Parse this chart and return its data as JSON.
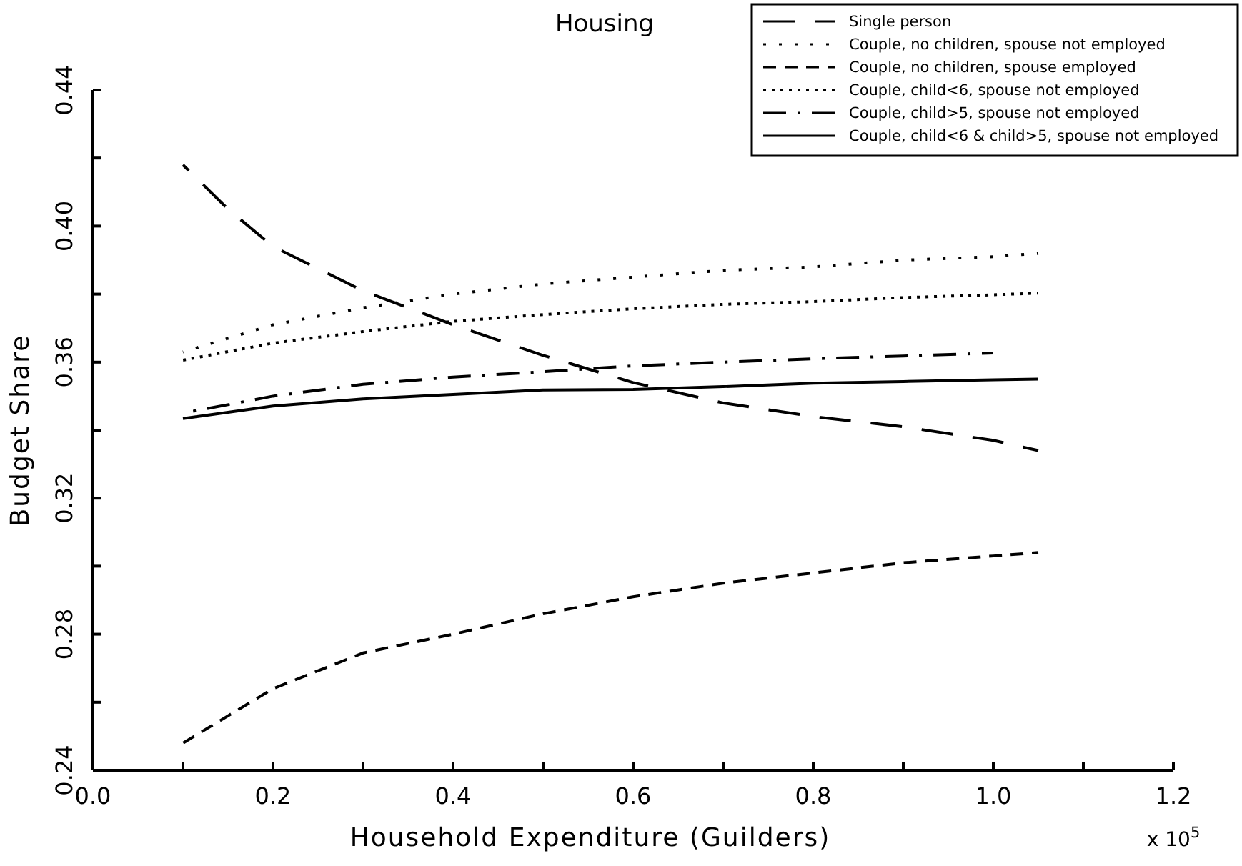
{
  "chart_data": {
    "type": "line",
    "title": "Housing",
    "xlabel": "Household Expenditure (Guilders)",
    "ylabel": "Budget Share",
    "annotations": [
      "x 10$^{5}$"
    ],
    "xlim": [
      0,
      1.2
    ],
    "ylim": [
      0.24,
      0.44
    ],
    "xticks": [
      {
        "value": 0,
        "label": "0.0"
      },
      {
        "value": 0.1,
        "label": null
      },
      {
        "value": 0.2,
        "label": "0.2"
      },
      {
        "value": 0.3,
        "label": null
      },
      {
        "value": 0.4,
        "label": "0.4"
      },
      {
        "value": 0.5,
        "label": null
      },
      {
        "value": 0.6,
        "label": "0.6"
      },
      {
        "value": 0.7,
        "label": null
      },
      {
        "value": 0.8,
        "label": "0.8"
      },
      {
        "value": 0.9,
        "label": null
      },
      {
        "value": 1.0,
        "label": "1.0"
      },
      {
        "value": 1.1,
        "label": null
      },
      {
        "value": 1.2,
        "label": "1.2"
      }
    ],
    "yticks": [
      0.24,
      {
        "value": 0.26,
        "label": null
      },
      0.28,
      {
        "value": 0.3,
        "label": null
      },
      0.32,
      {
        "value": 0.34,
        "label": null
      },
      0.36,
      {
        "value": 0.38,
        "label": null
      },
      {
        "value": 0.4,
        "label": "0.40"
      },
      {
        "value": 0.42,
        "label": null
      },
      0.44
    ],
    "legend": "top right",
    "grid": false,
    "marker": "none",
    "series": [
      {
        "name": "Single person",
        "color": "#000000",
        "line_style": "longdash",
        "x": [
          0.1,
          0.15,
          0.2,
          0.3,
          0.4,
          0.5,
          0.6,
          0.7,
          0.8,
          0.9,
          1.0,
          1.05
        ],
        "values": [
          0.418,
          0.405,
          0.394,
          0.381,
          0.371,
          0.362,
          0.354,
          0.348,
          0.344,
          0.341,
          0.337,
          0.334
        ]
      },
      {
        "name": "Couple, no children, spouse not employed",
        "color": "#000000",
        "line_style": "dotted",
        "x": [
          0.1,
          0.2,
          0.3,
          0.4,
          0.5,
          0.6,
          0.7,
          0.8,
          0.9,
          1.0,
          1.05
        ],
        "values": [
          0.363,
          0.371,
          0.376,
          0.38,
          0.383,
          0.385,
          0.387,
          0.388,
          0.39,
          0.391,
          0.392
        ]
      },
      {
        "name": "Couple, no children, spouse employed",
        "color": "#000000",
        "line_style": "dashed",
        "x": [
          0.1,
          0.15,
          0.2,
          0.3,
          0.4,
          0.5,
          0.6,
          0.7,
          0.8,
          0.9,
          1.0,
          1.05
        ],
        "values": [
          0.248,
          0.256,
          0.264,
          0.2745,
          0.28,
          0.286,
          0.291,
          0.295,
          0.298,
          0.301,
          0.303,
          0.304
        ]
      },
      {
        "name": "Couple, child<6, spouse not employed",
        "color": "#000000",
        "line_style": "densedotted",
        "x": [
          0.1,
          0.2,
          0.3,
          0.4,
          0.5,
          0.6,
          0.7,
          0.8,
          0.9,
          1.0,
          1.05
        ],
        "values": [
          0.3606,
          0.3656,
          0.369,
          0.372,
          0.374,
          0.3757,
          0.377,
          0.3778,
          0.379,
          0.3798,
          0.3803
        ]
      },
      {
        "name": "Couple, child>5, spouse not employed",
        "color": "#000000",
        "line_style": "dashdot",
        "x": [
          0.1,
          0.2,
          0.3,
          0.4,
          0.5,
          0.6,
          0.7,
          0.8,
          0.9,
          1.0
        ],
        "values": [
          0.345,
          0.35,
          0.3535,
          0.3556,
          0.3572,
          0.3589,
          0.36,
          0.361,
          0.3618,
          0.3627
        ]
      },
      {
        "name": "Couple, child<6 & child>5, spouse not employed",
        "color": "#000000",
        "line_style": "solid",
        "x": [
          0.1,
          0.2,
          0.3,
          0.4,
          0.5,
          0.6,
          0.7,
          0.8,
          0.9,
          1.0,
          1.05
        ],
        "values": [
          0.3434,
          0.3471,
          0.3492,
          0.3505,
          0.3518,
          0.352,
          0.3528,
          0.3538,
          0.3543,
          0.3548,
          0.355
        ]
      }
    ]
  }
}
